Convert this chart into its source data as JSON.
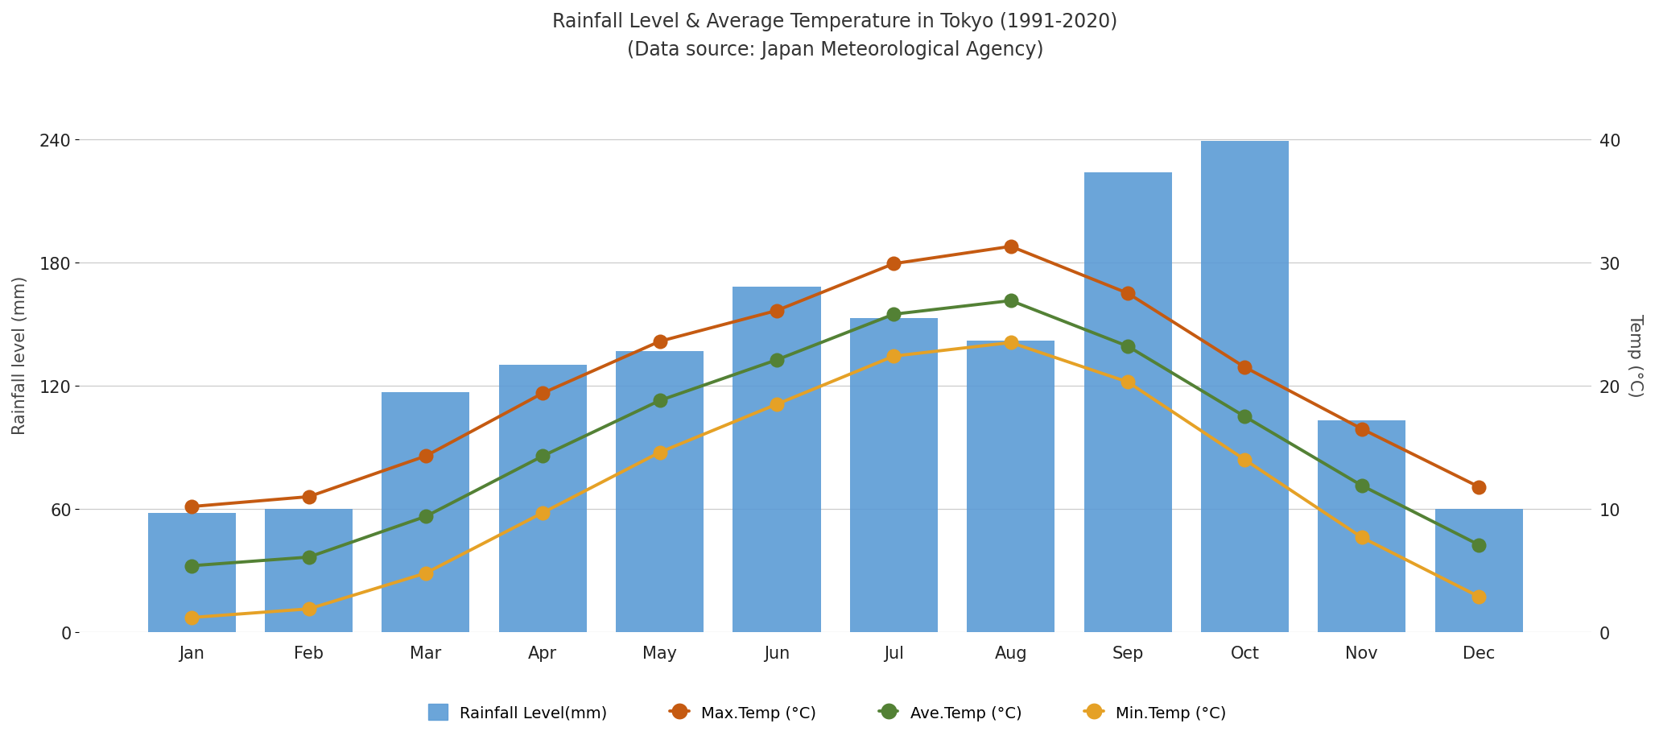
{
  "title_line1": "Rainfall Level & Average Temperature in Tokyo (1991-2020)",
  "title_line2": "(Data source: Japan Meteorological Agency)",
  "months": [
    "Jan",
    "Feb",
    "Mar",
    "Apr",
    "May",
    "Jun",
    "Jul",
    "Aug",
    "Sep",
    "Oct",
    "Nov",
    "Dec"
  ],
  "rainfall_mm": [
    58,
    60,
    117,
    130,
    137,
    168,
    153,
    142,
    224,
    239,
    103,
    60
  ],
  "max_temp_c": [
    10.2,
    11.0,
    14.3,
    19.4,
    23.6,
    26.1,
    29.9,
    31.3,
    27.5,
    21.5,
    16.5,
    11.8
  ],
  "ave_temp_c": [
    5.4,
    6.1,
    9.4,
    14.3,
    18.8,
    22.1,
    25.8,
    26.9,
    23.2,
    17.5,
    11.9,
    7.1
  ],
  "min_temp_c": [
    1.2,
    1.9,
    4.8,
    9.7,
    14.6,
    18.5,
    22.4,
    23.5,
    20.3,
    14.0,
    7.7,
    2.9
  ],
  "bar_color": "#5b9bd5",
  "max_temp_color": "#c55a11",
  "ave_temp_color": "#538135",
  "min_temp_color": "#e5a126",
  "ylabel_left": "Rainfall level (mm)",
  "ylabel_right": "Temp (°C)",
  "ylim_left": [
    0,
    270
  ],
  "ylim_right": [
    0,
    45
  ],
  "yticks_left": [
    0,
    60,
    120,
    180,
    240
  ],
  "yticks_right": [
    0,
    10,
    20,
    30,
    40
  ],
  "background_color": "#ffffff",
  "legend_labels": [
    "Rainfall Level(mm)",
    "Max.Temp (°C)",
    "Ave.Temp (°C)",
    "Min.Temp (°C)"
  ]
}
